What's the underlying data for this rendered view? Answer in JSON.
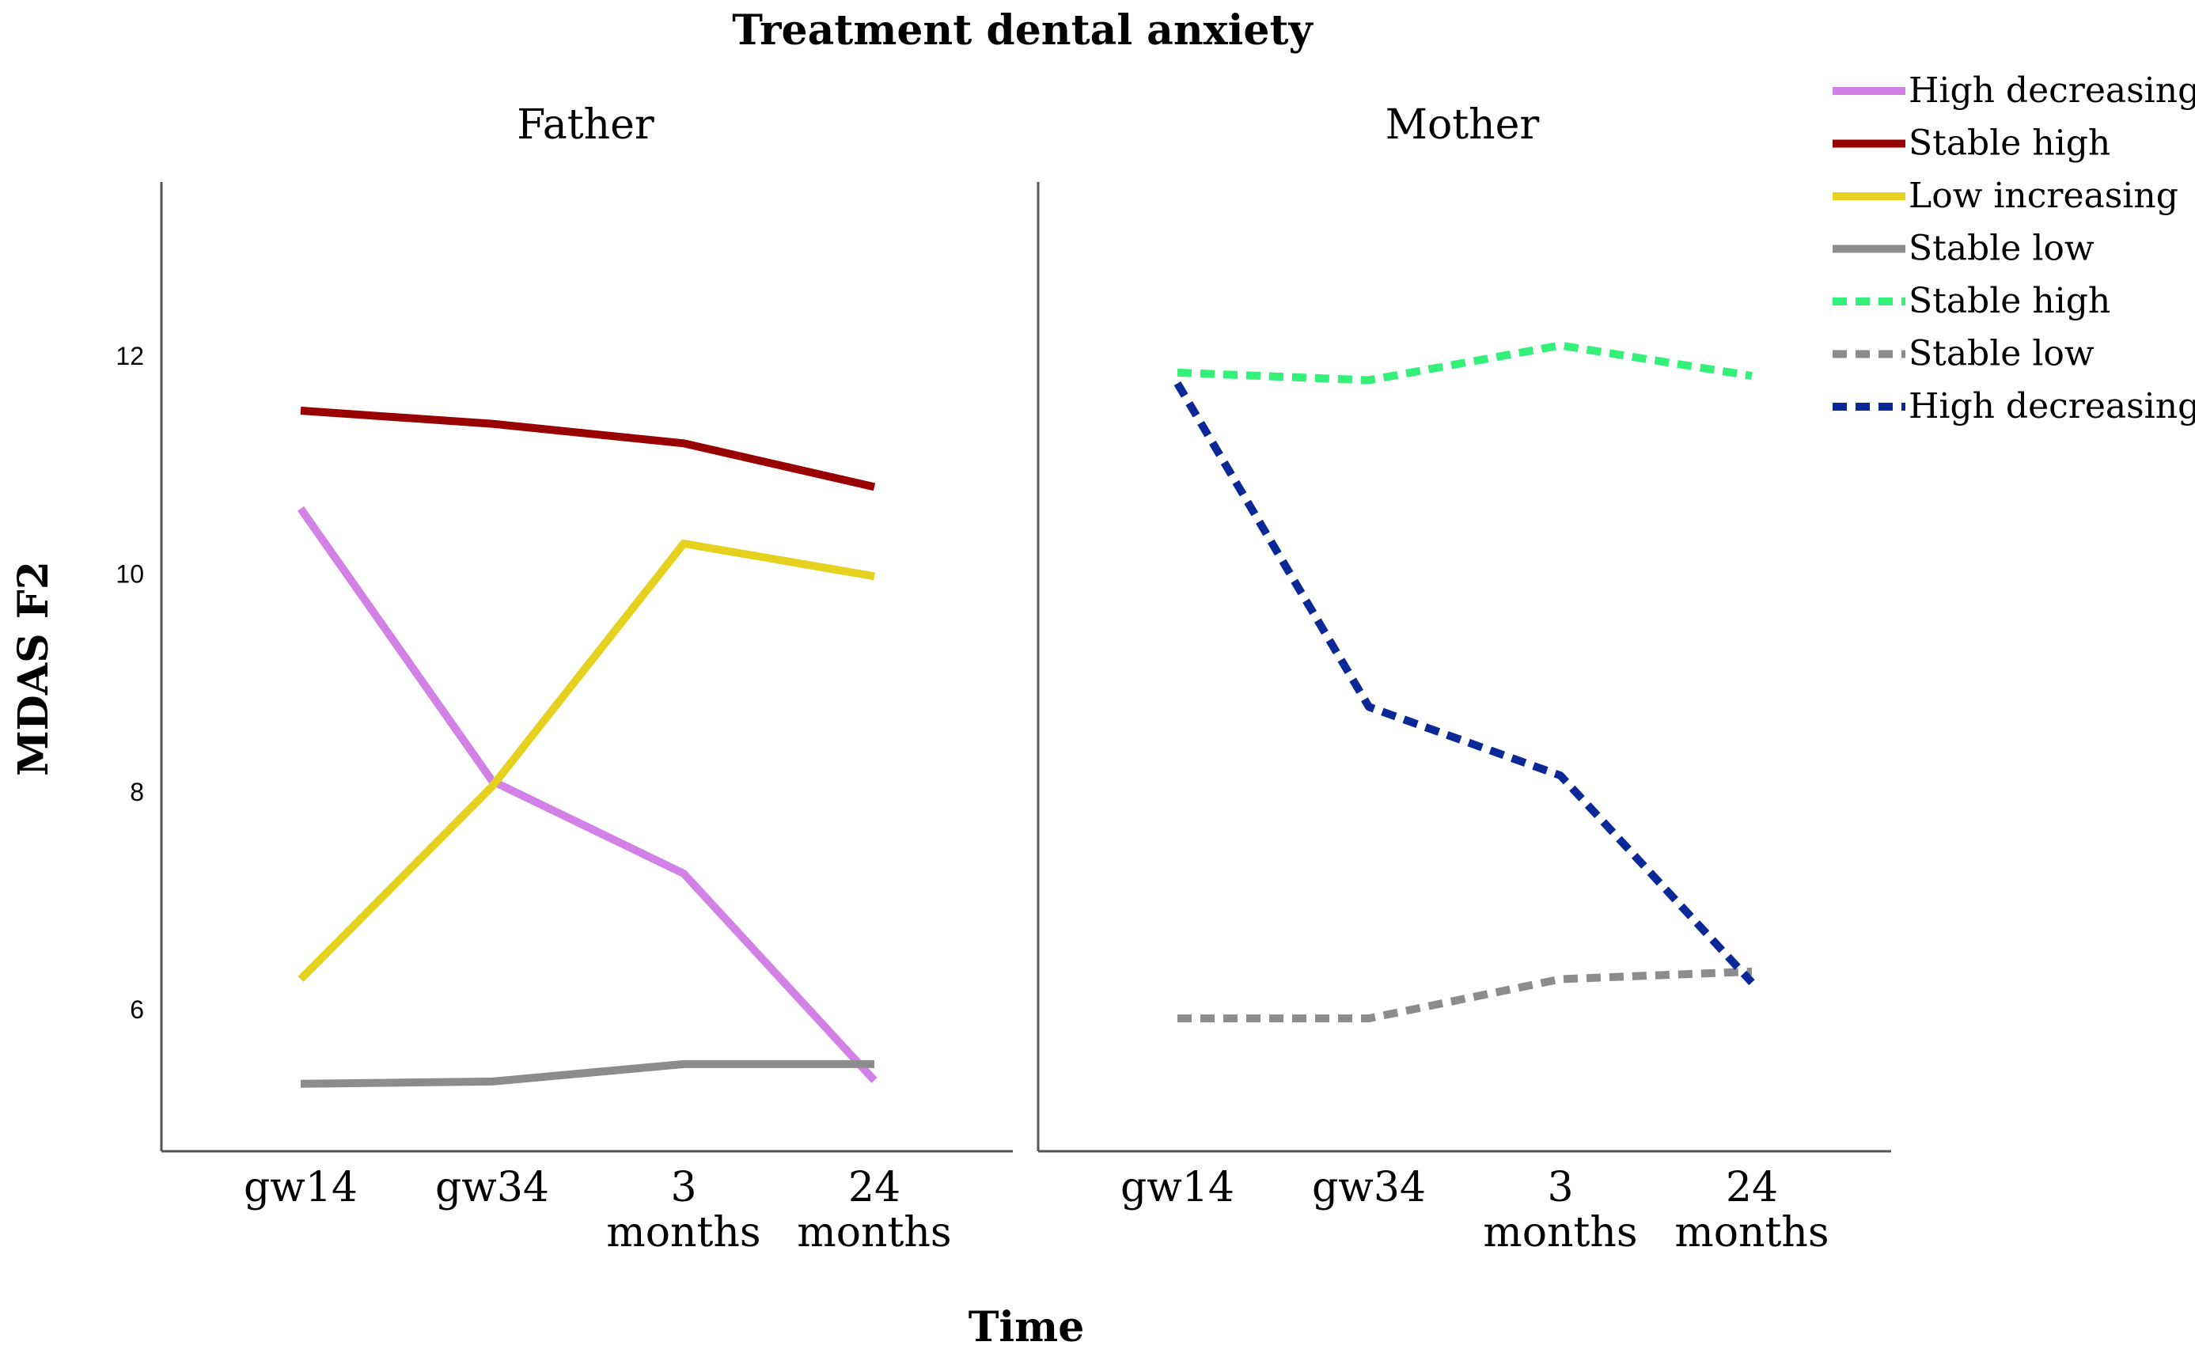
{
  "chart_data": {
    "type": "line",
    "title": "Treatment dental anxiety",
    "xlabel": "Time",
    "ylabel": "MDAS F2",
    "categories": [
      [
        "gw14"
      ],
      [
        "gw34"
      ],
      [
        "3",
        "months"
      ],
      [
        "24",
        "months"
      ]
    ],
    "ylim": [
      4.7,
      13.6
    ],
    "yticks": [
      6,
      8,
      10,
      12
    ],
    "grid": false,
    "legend_position": "top-right",
    "panels": [
      {
        "name": "Father",
        "series": [
          {
            "name": "High decreasing",
            "color": "#d282e6",
            "style": "solid",
            "values": [
              10.6,
              8.1,
              7.25,
              5.35
            ]
          },
          {
            "name": "Stable high",
            "color": "#990000",
            "style": "solid",
            "values": [
              11.5,
              11.38,
              11.2,
              10.8
            ]
          },
          {
            "name": "Low increasing",
            "color": "#e6d21e",
            "style": "solid",
            "values": [
              6.28,
              8.05,
              10.28,
              9.98
            ]
          },
          {
            "name": "Stable low",
            "color": "#8c8c8c",
            "style": "solid",
            "values": [
              5.32,
              5.34,
              5.5,
              5.5
            ]
          }
        ]
      },
      {
        "name": "Mother",
        "series": [
          {
            "name": "Stable high",
            "color": "#32f078",
            "style": "dotted",
            "values": [
              11.85,
              11.78,
              12.1,
              11.82
            ]
          },
          {
            "name": "Stable low",
            "color": "#8c8c8c",
            "style": "dotted",
            "values": [
              5.92,
              5.92,
              6.28,
              6.35
            ]
          },
          {
            "name": "High decreasing",
            "color": "#0a2896",
            "style": "dotted",
            "values": [
              11.75,
              8.78,
              8.15,
              6.25
            ]
          }
        ]
      }
    ],
    "legend": [
      {
        "label": "High decreasing",
        "color": "#d282e6",
        "style": "solid"
      },
      {
        "label": "Stable high",
        "color": "#990000",
        "style": "solid"
      },
      {
        "label": "Low increasing",
        "color": "#e6d21e",
        "style": "solid"
      },
      {
        "label": "Stable low",
        "color": "#8c8c8c",
        "style": "solid"
      },
      {
        "label": "Stable high",
        "color": "#32f078",
        "style": "dotted"
      },
      {
        "label": "Stable low",
        "color": "#8c8c8c",
        "style": "dotted"
      },
      {
        "label": "High decreasing",
        "color": "#0a2896",
        "style": "dotted"
      }
    ]
  }
}
